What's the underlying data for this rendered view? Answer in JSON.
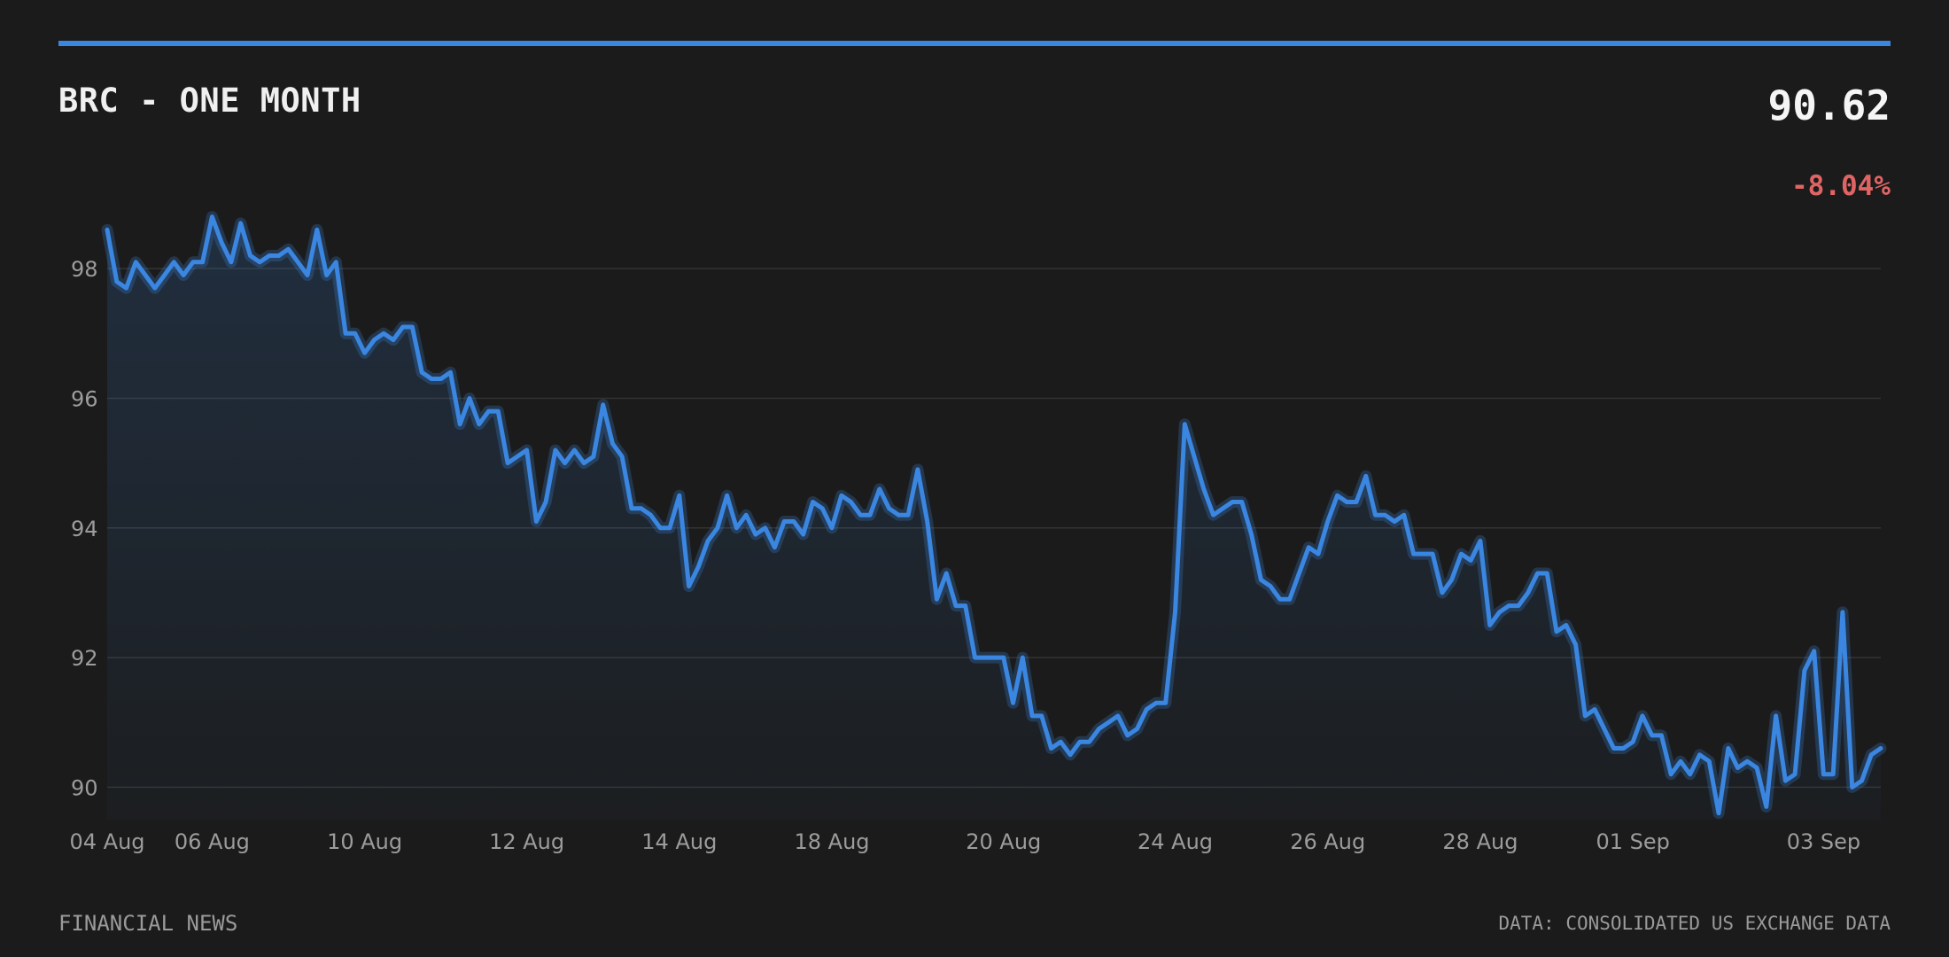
{
  "header": {
    "title": "BRC - ONE MONTH",
    "price": "90.62",
    "change": "-8.04%"
  },
  "footer": {
    "source_left": "FINANCIAL NEWS",
    "source_right": "DATA: CONSOLIDATED US EXCHANGE DATA"
  },
  "colors": {
    "accent": "#3a86e0",
    "negative": "#e06464",
    "background": "#1b1b1b",
    "grid": "#333333"
  },
  "chart_data": {
    "type": "area",
    "title": "BRC - ONE MONTH",
    "xlabel": "",
    "ylabel": "",
    "ylim": [
      89.5,
      99.0
    ],
    "yticks": [
      90,
      92,
      94,
      96,
      98
    ],
    "grid": true,
    "xticks": [
      "04 Aug",
      "06 Aug",
      "10 Aug",
      "12 Aug",
      "14 Aug",
      "18 Aug",
      "20 Aug",
      "24 Aug",
      "26 Aug",
      "28 Aug",
      "01 Sep",
      "03 Sep"
    ],
    "xtick_index": [
      0,
      11,
      27,
      44,
      60,
      76,
      94,
      112,
      128,
      144,
      160,
      180
    ],
    "series": [
      {
        "values": [
          98.6,
          97.8,
          97.7,
          98.1,
          97.9,
          97.7,
          97.9,
          98.1,
          97.9,
          98.1,
          98.1,
          98.8,
          98.4,
          98.1,
          98.7,
          98.2,
          98.1,
          98.2,
          98.2,
          98.3,
          98.1,
          97.9,
          98.6,
          97.9,
          98.1,
          97.0,
          97.0,
          96.7,
          96.9,
          97.0,
          96.9,
          97.1,
          97.1,
          96.4,
          96.3,
          96.3,
          96.4,
          95.6,
          96.0,
          95.6,
          95.8,
          95.8,
          95.0,
          95.1,
          95.2,
          94.1,
          94.4,
          95.2,
          95.0,
          95.2,
          95.0,
          95.1,
          95.9,
          95.3,
          95.1,
          94.3,
          94.3,
          94.2,
          94.0,
          94.0,
          94.5,
          93.1,
          93.4,
          93.8,
          94.0,
          94.5,
          94.0,
          94.2,
          93.9,
          94.0,
          93.7,
          94.1,
          94.1,
          93.9,
          94.4,
          94.3,
          94.0,
          94.5,
          94.4,
          94.2,
          94.2,
          94.6,
          94.3,
          94.2,
          94.2,
          94.9,
          94.1,
          92.9,
          93.3,
          92.8,
          92.8,
          92.0,
          92.0,
          92.0,
          92.0,
          91.3,
          92.0,
          91.1,
          91.1,
          90.6,
          90.7,
          90.5,
          90.7,
          90.7,
          90.9,
          91.0,
          91.1,
          90.8,
          90.9,
          91.2,
          91.3,
          91.3,
          92.7,
          95.6,
          95.1,
          94.6,
          94.2,
          94.3,
          94.4,
          94.4,
          93.9,
          93.2,
          93.1,
          92.9,
          92.9,
          93.3,
          93.7,
          93.6,
          94.1,
          94.5,
          94.4,
          94.4,
          94.8,
          94.2,
          94.2,
          94.1,
          94.2,
          93.6,
          93.6,
          93.6,
          93.0,
          93.2,
          93.6,
          93.5,
          93.8,
          92.5,
          92.7,
          92.8,
          92.8,
          93.0,
          93.3,
          93.3,
          92.4,
          92.5,
          92.2,
          91.1,
          91.2,
          90.9,
          90.6,
          90.6,
          90.7,
          91.1,
          90.8,
          90.8,
          90.2,
          90.4,
          90.2,
          90.5,
          90.4,
          89.6,
          90.6,
          90.3,
          90.4,
          90.3,
          89.7,
          91.1,
          90.1,
          90.2,
          91.8,
          92.1,
          90.2,
          90.2,
          92.7,
          90.0,
          90.1,
          90.5,
          90.6
        ]
      }
    ]
  }
}
